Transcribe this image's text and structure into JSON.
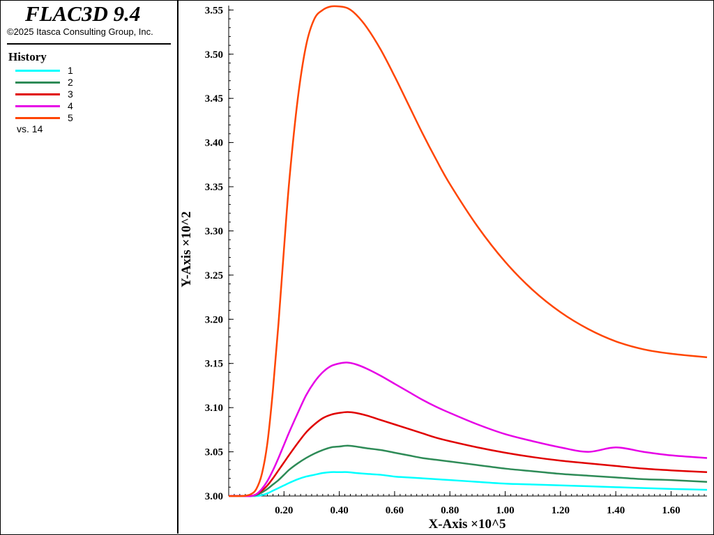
{
  "header": {
    "app_title": "FLAC3D 9.4",
    "copyright": "©2025 Itasca Consulting Group, Inc."
  },
  "legend": {
    "heading": "History",
    "items": [
      {
        "label": "1",
        "color": "#00ffff"
      },
      {
        "label": "2",
        "color": "#2e8b57"
      },
      {
        "label": "3",
        "color": "#e00000"
      },
      {
        "label": "4",
        "color": "#e600e6"
      },
      {
        "label": "5",
        "color": "#ff4500"
      }
    ],
    "vs_label": "vs. 14"
  },
  "chart_data": {
    "type": "line",
    "xlabel": "X-Axis ×10^5",
    "ylabel": "Y-Axis ×10^2",
    "xlim": [
      0.0,
      1.73
    ],
    "ylim": [
      3.0,
      3.555
    ],
    "xticks": [
      "0.20",
      "0.40",
      "0.60",
      "0.80",
      "1.00",
      "1.20",
      "1.40",
      "1.60"
    ],
    "yticks": [
      "3.00",
      "3.05",
      "3.10",
      "3.15",
      "3.20",
      "3.25",
      "3.30",
      "3.35",
      "3.40",
      "3.45",
      "3.50",
      "3.55"
    ],
    "grid": false,
    "x": [
      0.0,
      0.05,
      0.08,
      0.1,
      0.12,
      0.14,
      0.16,
      0.18,
      0.2,
      0.22,
      0.25,
      0.28,
      0.31,
      0.34,
      0.37,
      0.4,
      0.43,
      0.46,
      0.5,
      0.55,
      0.6,
      0.65,
      0.7,
      0.75,
      0.8,
      0.9,
      1.0,
      1.1,
      1.2,
      1.3,
      1.4,
      1.5,
      1.6,
      1.73
    ],
    "series": [
      {
        "name": "1",
        "color": "#00ffff",
        "values": [
          3.0,
          3.0,
          3.0,
          3.0,
          3.001,
          3.003,
          3.006,
          3.009,
          3.012,
          3.015,
          3.019,
          3.022,
          3.024,
          3.026,
          3.027,
          3.027,
          3.027,
          3.026,
          3.025,
          3.024,
          3.022,
          3.021,
          3.02,
          3.019,
          3.018,
          3.016,
          3.014,
          3.013,
          3.012,
          3.011,
          3.01,
          3.009,
          3.008,
          3.007
        ]
      },
      {
        "name": "2",
        "color": "#2e8b57",
        "values": [
          3.0,
          3.0,
          3.0,
          3.001,
          3.004,
          3.008,
          3.013,
          3.018,
          3.024,
          3.03,
          3.037,
          3.043,
          3.048,
          3.052,
          3.055,
          3.056,
          3.057,
          3.056,
          3.054,
          3.052,
          3.049,
          3.046,
          3.043,
          3.041,
          3.039,
          3.035,
          3.031,
          3.028,
          3.025,
          3.023,
          3.021,
          3.019,
          3.018,
          3.016
        ]
      },
      {
        "name": "3",
        "color": "#e00000",
        "values": [
          3.0,
          3.0,
          3.0,
          3.002,
          3.006,
          3.012,
          3.02,
          3.029,
          3.038,
          3.047,
          3.06,
          3.072,
          3.081,
          3.088,
          3.092,
          3.094,
          3.095,
          3.094,
          3.091,
          3.086,
          3.081,
          3.076,
          3.071,
          3.066,
          3.062,
          3.055,
          3.049,
          3.044,
          3.04,
          3.037,
          3.034,
          3.031,
          3.029,
          3.027
        ]
      },
      {
        "name": "4",
        "color": "#e600e6",
        "values": [
          3.0,
          3.0,
          3.0,
          3.002,
          3.008,
          3.017,
          3.029,
          3.043,
          3.058,
          3.073,
          3.094,
          3.114,
          3.129,
          3.14,
          3.147,
          3.15,
          3.151,
          3.149,
          3.144,
          3.136,
          3.127,
          3.118,
          3.109,
          3.101,
          3.094,
          3.081,
          3.07,
          3.062,
          3.055,
          3.05,
          3.055,
          3.05,
          3.046,
          3.043
        ]
      },
      {
        "name": "5",
        "color": "#ff4500",
        "values": [
          3.0,
          3.0,
          3.002,
          3.008,
          3.025,
          3.06,
          3.12,
          3.195,
          3.28,
          3.36,
          3.45,
          3.51,
          3.54,
          3.55,
          3.554,
          3.554,
          3.552,
          3.545,
          3.53,
          3.505,
          3.475,
          3.443,
          3.411,
          3.381,
          3.353,
          3.305,
          3.265,
          3.233,
          3.208,
          3.189,
          3.175,
          3.166,
          3.161,
          3.157
        ]
      }
    ]
  }
}
